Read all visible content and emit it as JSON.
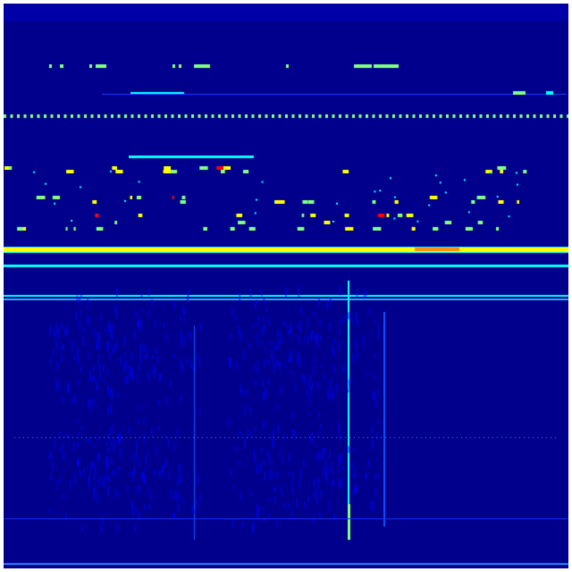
{
  "image": {
    "kind": "spectrogram-heatmap",
    "colormap": "jet",
    "colors": {
      "background": "#00008c",
      "low": "#0000ff",
      "mid_low": "#00ffff",
      "mid": "#80ff80",
      "mid_high": "#ffff00",
      "high": "#ff0000",
      "frame": "#ffffff"
    }
  }
}
